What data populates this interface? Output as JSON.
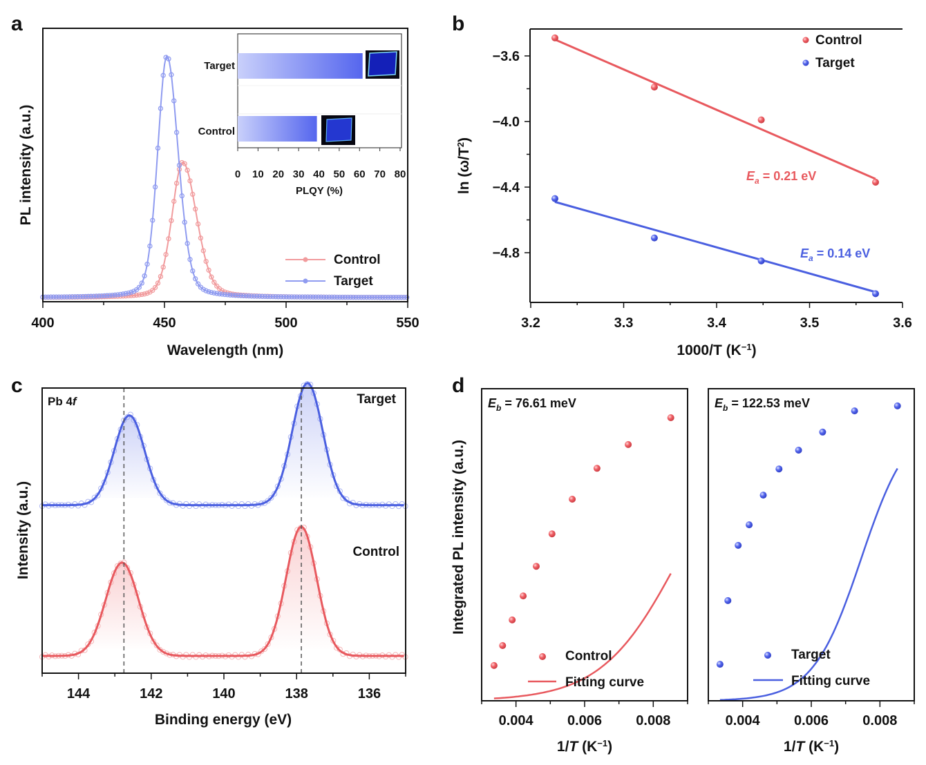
{
  "figure": {
    "panels": [
      "a",
      "b",
      "c",
      "d"
    ]
  },
  "colors": {
    "control": "#e8595e",
    "target": "#4a5fe0",
    "control_light": "#f19b9d",
    "target_light": "#8f9bf0",
    "axis": "#111111",
    "dash": "#555555"
  },
  "chart_data": [
    {
      "id": "a",
      "type": "line",
      "panel_label": "a",
      "title": "",
      "xlabel": "Wavelength (nm)",
      "ylabel": "PL intensity (a.u.)",
      "xlim": [
        400,
        550
      ],
      "ylim": [
        0,
        1.12
      ],
      "xticks": [
        400,
        450,
        500,
        550
      ],
      "xtick_labels": [
        "400",
        "450",
        "500",
        "550"
      ],
      "yticks": [],
      "grid": false,
      "legend": {
        "placement": "bottom-right",
        "entries": [
          "Control",
          "Target"
        ]
      },
      "series": [
        {
          "name": "Control",
          "peak_x": 457.5,
          "peak_y": 0.56,
          "fwhm_left": 10.5,
          "fwhm_right": 13.5,
          "marker": "open-circle-line"
        },
        {
          "name": "Target",
          "peak_x": 451,
          "peak_y": 1.0,
          "fwhm_left": 9.0,
          "fwhm_right": 11.0,
          "marker": "open-circle-line"
        }
      ],
      "inset": {
        "type": "bar",
        "orientation": "horizontal",
        "categories": [
          "Target",
          "Control"
        ],
        "values": [
          61.5,
          39
        ],
        "xlabel": "PLQY (%)",
        "xlim": [
          0,
          80
        ],
        "xticks": [
          0,
          10,
          20,
          30,
          40,
          50,
          60,
          70,
          80
        ],
        "xtick_labels": [
          "0",
          "10",
          "20",
          "30",
          "40",
          "50",
          "60",
          "70",
          "80"
        ],
        "photos": [
          "Target film photo under UV",
          "Control film photo under UV"
        ]
      }
    },
    {
      "id": "b",
      "type": "scatter",
      "panel_label": "b",
      "xlabel": "1000/T (K⁻¹)",
      "ylabel": "ln (ω/T²)",
      "xlim": [
        3.2,
        3.6
      ],
      "ylim": [
        -5.1,
        -3.44
      ],
      "xticks": [
        3.2,
        3.3,
        3.4,
        3.5,
        3.6
      ],
      "xtick_labels": [
        "3.2",
        "3.3",
        "3.4",
        "3.5",
        "3.6"
      ],
      "yticks": [
        -3.6,
        -4.0,
        -4.4,
        -4.8
      ],
      "ytick_labels": [
        "−3.6",
        "−4.0",
        "−4.4",
        "−4.8"
      ],
      "grid": false,
      "legend": {
        "placement": "top-right",
        "entries": [
          "Control",
          "Target"
        ]
      },
      "series": [
        {
          "name": "Control",
          "x": [
            3.226,
            3.333,
            3.448,
            3.571
          ],
          "y": [
            -3.49,
            -3.79,
            -3.99,
            -4.37
          ],
          "fit": {
            "x": [
              3.226,
              3.571
            ],
            "y": [
              -3.5,
              -4.35
            ]
          }
        },
        {
          "name": "Target",
          "x": [
            3.226,
            3.333,
            3.448,
            3.571
          ],
          "y": [
            -4.47,
            -4.71,
            -4.85,
            -5.05
          ],
          "fit": {
            "x": [
              3.226,
              3.571
            ],
            "y": [
              -4.49,
              -5.04
            ]
          }
        }
      ],
      "annotations": [
        {
          "series": "Control",
          "symbol": "E",
          "sub": "a",
          "text": " = 0.21 eV"
        },
        {
          "series": "Target",
          "symbol": "E",
          "sub": "a",
          "text": " = 0.14 eV"
        }
      ]
    },
    {
      "id": "c",
      "type": "line",
      "panel_label": "c",
      "xlabel": "Binding energy (eV)",
      "ylabel": "Intensity (a.u.)",
      "xlim": [
        145,
        135
      ],
      "xticks": [
        144,
        142,
        140,
        138,
        136
      ],
      "xtick_labels": [
        "144",
        "142",
        "140",
        "138",
        "136"
      ],
      "yticks": [],
      "grid": false,
      "corner_label": {
        "main": "Pb 4",
        "italic": "f"
      },
      "reference_lines_x": [
        142.75,
        137.87
      ],
      "series": [
        {
          "name": "Target",
          "offset": 0.42,
          "peaks": [
            {
              "x": 142.6,
              "h": 0.25,
              "sigma": 0.42
            },
            {
              "x": 137.7,
              "h": 0.34,
              "sigma": 0.42
            }
          ]
        },
        {
          "name": "Control",
          "offset": 0.0,
          "peaks": [
            {
              "x": 142.8,
              "h": 0.26,
              "sigma": 0.45
            },
            {
              "x": 137.87,
              "h": 0.36,
              "sigma": 0.42
            }
          ]
        }
      ]
    },
    {
      "id": "d-control",
      "type": "scatter",
      "panel_label": "d",
      "xlabel": "1/T (K⁻¹)",
      "ylabel": "Integrated PL intensity (a.u.)",
      "xlim": [
        0.003,
        0.009
      ],
      "ylim": [
        0,
        1
      ],
      "xticks": [
        0.004,
        0.006,
        0.008
      ],
      "xtick_labels": [
        "0.004",
        "0.006",
        "0.008"
      ],
      "grid": false,
      "annotation": {
        "symbol": "E",
        "sub": "b",
        "text": " = 76.61 meV"
      },
      "legend": {
        "placement": "bottom",
        "entries": [
          "Control",
          "Fitting curve"
        ]
      },
      "series": [
        {
          "name": "Control",
          "x": [
            0.00336,
            0.00361,
            0.00389,
            0.00421,
            0.00459,
            0.00505,
            0.00564,
            0.00636,
            0.00727,
            0.00851
          ],
          "y": [
            0.113,
            0.177,
            0.259,
            0.336,
            0.431,
            0.535,
            0.646,
            0.745,
            0.821,
            0.907
          ]
        },
        {
          "name": "Fitting curve",
          "model": "arrhenius",
          "A": 0.915,
          "B": 2400,
          "Eb_meV": 76.61,
          "x_range": [
            0.00336,
            0.00851
          ]
        }
      ]
    },
    {
      "id": "d-target",
      "type": "scatter",
      "panel_label": "",
      "xlabel": "1/T (K⁻¹)",
      "ylabel": "",
      "xlim": [
        0.003,
        0.009
      ],
      "ylim": [
        0,
        1
      ],
      "xticks": [
        0.004,
        0.006,
        0.008
      ],
      "xtick_labels": [
        "0.004",
        "0.006",
        "0.008"
      ],
      "grid": false,
      "annotation": {
        "symbol": "E",
        "sub": "b",
        "text": " = 122.53 meV"
      },
      "legend": {
        "placement": "bottom",
        "entries": [
          "Target",
          "Fitting curve"
        ]
      },
      "series": [
        {
          "name": "Target",
          "x": [
            0.00334,
            0.00357,
            0.00387,
            0.00419,
            0.0046,
            0.00506,
            0.00563,
            0.00633,
            0.00726,
            0.00851
          ],
          "y": [
            0.117,
            0.321,
            0.498,
            0.564,
            0.659,
            0.743,
            0.803,
            0.861,
            0.929,
            0.945
          ]
        },
        {
          "name": "Fitting curve",
          "model": "arrhenius",
          "A": 0.91,
          "B": 40000,
          "Eb_meV": 122.53,
          "x_range": [
            0.00334,
            0.00851
          ]
        }
      ]
    }
  ]
}
